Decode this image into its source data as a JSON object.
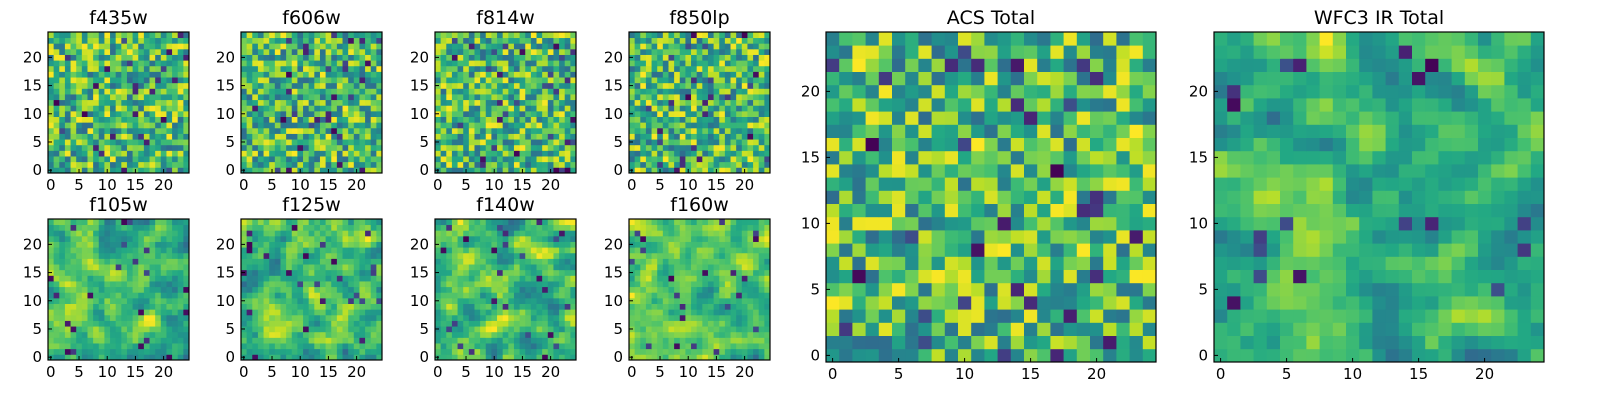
{
  "figure": {
    "description_colormap": "viridis"
  },
  "chart_data": [
    {
      "type": "heatmap",
      "title": "f435w",
      "grid": [
        25,
        25
      ],
      "xlim": [
        0,
        25
      ],
      "ylim": [
        0,
        25
      ],
      "xticks": [
        0,
        5,
        10,
        15,
        20
      ],
      "yticks": [
        0,
        5,
        10,
        15,
        20
      ],
      "seed": 11,
      "smooth": 0
    },
    {
      "type": "heatmap",
      "title": "f606w",
      "grid": [
        25,
        25
      ],
      "xlim": [
        0,
        25
      ],
      "ylim": [
        0,
        25
      ],
      "xticks": [
        0,
        5,
        10,
        15,
        20
      ],
      "yticks": [
        0,
        5,
        10,
        15,
        20
      ],
      "seed": 23,
      "smooth": 0
    },
    {
      "type": "heatmap",
      "title": "f814w",
      "grid": [
        25,
        25
      ],
      "xlim": [
        0,
        25
      ],
      "ylim": [
        0,
        25
      ],
      "xticks": [
        0,
        5,
        10,
        15,
        20
      ],
      "yticks": [
        0,
        5,
        10,
        15,
        20
      ],
      "seed": 37,
      "smooth": 0
    },
    {
      "type": "heatmap",
      "title": "f850lp",
      "grid": [
        25,
        25
      ],
      "xlim": [
        0,
        25
      ],
      "ylim": [
        0,
        25
      ],
      "xticks": [
        0,
        5,
        10,
        15,
        20
      ],
      "yticks": [
        0,
        5,
        10,
        15,
        20
      ],
      "seed": 41,
      "smooth": 0
    },
    {
      "type": "heatmap",
      "title": "f105w",
      "grid": [
        25,
        25
      ],
      "xlim": [
        0,
        25
      ],
      "ylim": [
        0,
        25
      ],
      "xticks": [
        0,
        5,
        10,
        15,
        20
      ],
      "yticks": [
        0,
        5,
        10,
        15,
        20
      ],
      "seed": 53,
      "smooth": 1
    },
    {
      "type": "heatmap",
      "title": "f125w",
      "grid": [
        25,
        25
      ],
      "xlim": [
        0,
        25
      ],
      "ylim": [
        0,
        25
      ],
      "xticks": [
        0,
        5,
        10,
        15,
        20
      ],
      "yticks": [
        0,
        5,
        10,
        15,
        20
      ],
      "seed": 67,
      "smooth": 1
    },
    {
      "type": "heatmap",
      "title": "f140w",
      "grid": [
        25,
        25
      ],
      "xlim": [
        0,
        25
      ],
      "ylim": [
        0,
        25
      ],
      "xticks": [
        0,
        5,
        10,
        15,
        20
      ],
      "yticks": [
        0,
        5,
        10,
        15,
        20
      ],
      "seed": 71,
      "smooth": 1
    },
    {
      "type": "heatmap",
      "title": "f160w",
      "grid": [
        25,
        25
      ],
      "xlim": [
        0,
        25
      ],
      "ylim": [
        0,
        25
      ],
      "xticks": [
        0,
        5,
        10,
        15,
        20
      ],
      "yticks": [
        0,
        5,
        10,
        15,
        20
      ],
      "seed": 83,
      "smooth": 1
    },
    {
      "type": "heatmap",
      "title": "ACS Total",
      "grid": [
        25,
        25
      ],
      "xlim": [
        0,
        25
      ],
      "ylim": [
        0,
        25
      ],
      "xticks": [
        0,
        5,
        10,
        15,
        20
      ],
      "yticks": [
        0,
        5,
        10,
        15,
        20
      ],
      "seed": 97,
      "smooth": 0
    },
    {
      "type": "heatmap",
      "title": "WFC3 IR Total",
      "grid": [
        25,
        25
      ],
      "xlim": [
        0,
        25
      ],
      "ylim": [
        0,
        25
      ],
      "xticks": [
        0,
        5,
        10,
        15,
        20
      ],
      "yticks": [
        0,
        5,
        10,
        15,
        20
      ],
      "seed": 101,
      "smooth": 1
    }
  ]
}
